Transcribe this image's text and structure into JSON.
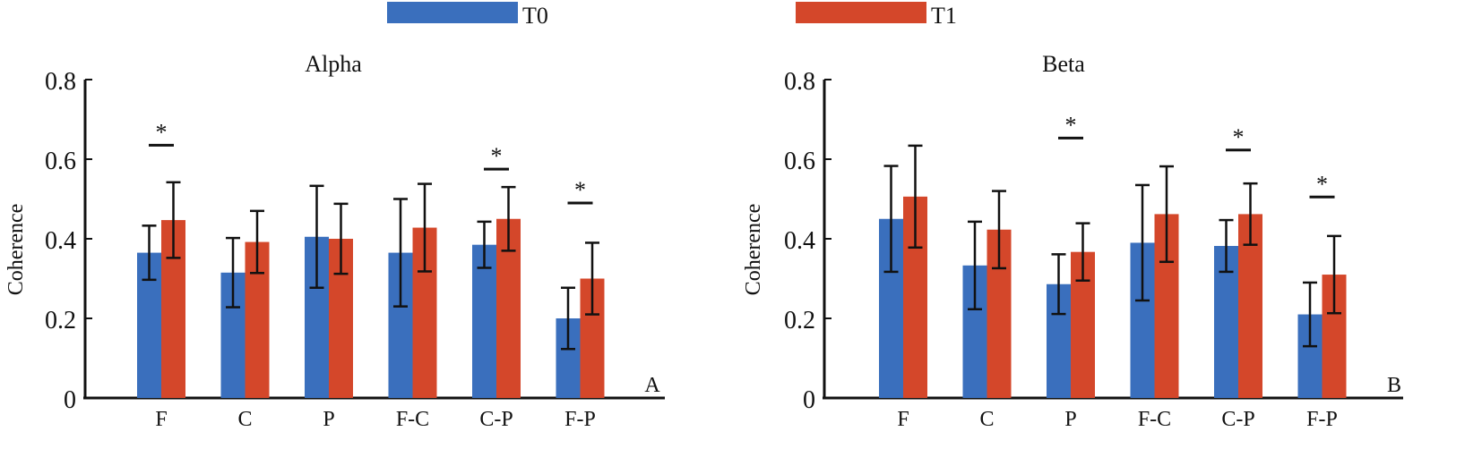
{
  "legend": {
    "items": [
      {
        "label": "T0",
        "color": "#3a6fbd"
      },
      {
        "label": "T1",
        "color": "#d4472a"
      }
    ]
  },
  "colors": {
    "t0": "#3a6fbd",
    "t1": "#d4472a",
    "axis": "#111111"
  },
  "chart_data": [
    {
      "type": "bar",
      "title": "Alpha",
      "panel_label": "A",
      "ylabel": "Coherence",
      "xlabel": "",
      "categories": [
        "F",
        "C",
        "P",
        "F-C",
        "C-P",
        "F-P"
      ],
      "ylim": [
        0,
        0.8
      ],
      "yticks": [
        0,
        0.2,
        0.4,
        0.6,
        0.8
      ],
      "ytick_labels": [
        "0",
        "0.2",
        "0.4",
        "0.6",
        "0.8"
      ],
      "series": [
        {
          "name": "T0",
          "values": [
            0.365,
            0.315,
            0.405,
            0.365,
            0.385,
            0.2
          ],
          "errors": [
            0.068,
            0.087,
            0.128,
            0.135,
            0.058,
            0.077
          ]
        },
        {
          "name": "T1",
          "values": [
            0.447,
            0.392,
            0.4,
            0.428,
            0.45,
            0.3
          ],
          "errors": [
            0.095,
            0.078,
            0.088,
            0.11,
            0.08,
            0.09
          ]
        }
      ],
      "significance": [
        {
          "category": "F",
          "y": 0.635,
          "label": "*"
        },
        {
          "category": "C-P",
          "y": 0.575,
          "label": "*"
        },
        {
          "category": "F-P",
          "y": 0.49,
          "label": "*"
        }
      ],
      "grid": false
    },
    {
      "type": "bar",
      "title": "Beta",
      "panel_label": "B",
      "ylabel": "Coherence",
      "xlabel": "",
      "categories": [
        "F",
        "C",
        "P",
        "F-C",
        "C-P",
        "F-P"
      ],
      "ylim": [
        0,
        0.8
      ],
      "yticks": [
        0,
        0.2,
        0.4,
        0.6,
        0.8
      ],
      "ytick_labels": [
        "0",
        "0.2",
        "0.4",
        "0.6",
        "0.8"
      ],
      "series": [
        {
          "name": "T0",
          "values": [
            0.45,
            0.333,
            0.286,
            0.39,
            0.382,
            0.21
          ],
          "errors": [
            0.133,
            0.11,
            0.075,
            0.145,
            0.065,
            0.08
          ]
        },
        {
          "name": "T1",
          "values": [
            0.506,
            0.423,
            0.367,
            0.462,
            0.462,
            0.31
          ],
          "errors": [
            0.128,
            0.097,
            0.072,
            0.12,
            0.077,
            0.097
          ]
        }
      ],
      "significance": [
        {
          "category": "P",
          "y": 0.653,
          "label": "*"
        },
        {
          "category": "C-P",
          "y": 0.623,
          "label": "*"
        },
        {
          "category": "F-P",
          "y": 0.505,
          "label": "*"
        }
      ],
      "grid": false
    }
  ]
}
